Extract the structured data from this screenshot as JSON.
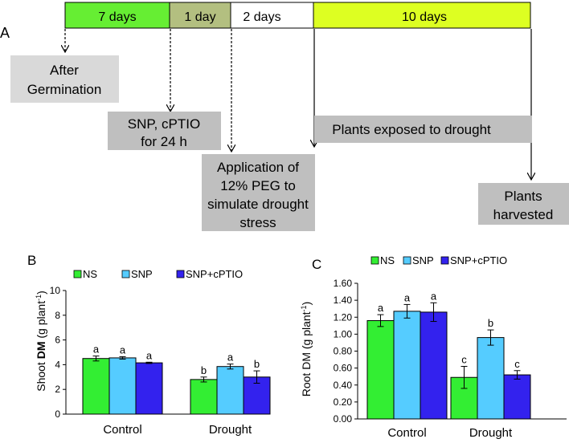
{
  "panel_a": {
    "label": "A",
    "timeline": [
      {
        "label": "7 days",
        "color": "#66ee33"
      },
      {
        "label": "1 day",
        "color": "#b3bf80"
      },
      {
        "label": "2 days",
        "color": "#ffffff"
      },
      {
        "label": "10 days",
        "color": "#ddff22"
      }
    ],
    "notes": {
      "germination": [
        "After",
        "Germination"
      ],
      "snp": [
        "SNP, cPTIO",
        "for 24 h"
      ],
      "peg": [
        "Application of",
        "12% PEG to",
        "simulate drought",
        "stress"
      ],
      "drought": [
        "Plants exposed to drought"
      ],
      "harvest": [
        "Plants",
        "harvested"
      ]
    }
  },
  "colors": {
    "NS": "#33ee33",
    "SNP": "#55ccff",
    "SNP+cPTIO": "#3322ee"
  },
  "chart_data": [
    {
      "panel_label": "B",
      "type": "bar",
      "ylabel_prefix": "Shoot ",
      "ylabel_bold": "DM",
      "ylabel_suffix": " (g plant",
      "ylabel_sup": "-1",
      "ylabel_end": ")",
      "categories": [
        "Control",
        "Drought"
      ],
      "ylim": [
        0,
        10
      ],
      "yticks": [
        "0",
        "2",
        "4",
        "6",
        "8",
        "10"
      ],
      "yticks_values": [
        0,
        2,
        4,
        6,
        8,
        10
      ],
      "legend": "top",
      "series": [
        {
          "name": "NS",
          "values": [
            4.5,
            2.8
          ],
          "errors": [
            0.2,
            0.2
          ],
          "letters": [
            "a",
            "b"
          ]
        },
        {
          "name": "SNP",
          "values": [
            4.55,
            3.85
          ],
          "errors": [
            0.1,
            0.2
          ],
          "letters": [
            "a",
            "a"
          ]
        },
        {
          "name": "SNP+cPTIO",
          "values": [
            4.15,
            3.0
          ],
          "errors": [
            0.05,
            0.5
          ],
          "letters": [
            "a",
            "b"
          ]
        }
      ]
    },
    {
      "panel_label": "C",
      "type": "bar",
      "ylabel_prefix": "Root DM (g plant",
      "ylabel_bold": "",
      "ylabel_suffix": "",
      "ylabel_sup": "-1",
      "ylabel_end": ")",
      "categories": [
        "Control",
        "Drought"
      ],
      "ylim": [
        0,
        1.6
      ],
      "yticks": [
        "0.00",
        "0.20",
        "0.40",
        "0.60",
        "0.80",
        "1.00",
        "1.20",
        "1.40",
        "1.60"
      ],
      "yticks_values": [
        0,
        0.2,
        0.4,
        0.6,
        0.8,
        1.0,
        1.2,
        1.4,
        1.6
      ],
      "legend": "top",
      "series": [
        {
          "name": "NS",
          "values": [
            1.16,
            0.49
          ],
          "errors": [
            0.07,
            0.13
          ],
          "letters": [
            "a",
            "c"
          ]
        },
        {
          "name": "SNP",
          "values": [
            1.27,
            0.96
          ],
          "errors": [
            0.08,
            0.09
          ],
          "letters": [
            "a",
            "b"
          ]
        },
        {
          "name": "SNP+cPTIO",
          "values": [
            1.26,
            0.52
          ],
          "errors": [
            0.11,
            0.05
          ],
          "letters": [
            "a",
            "c"
          ]
        }
      ]
    }
  ]
}
